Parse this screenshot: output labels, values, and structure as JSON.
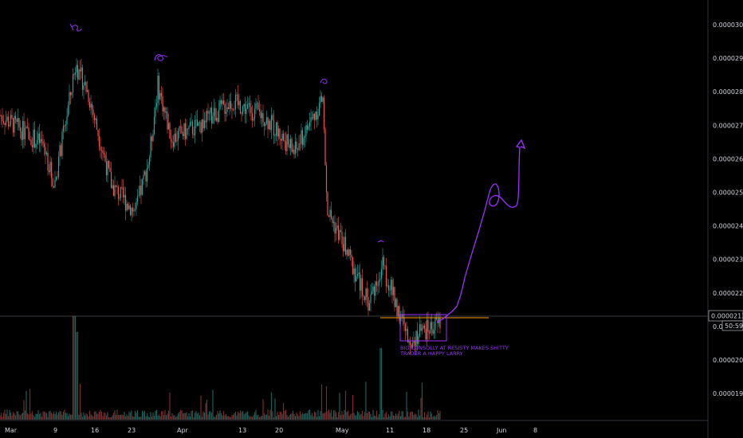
{
  "theme": {
    "background": "#000000",
    "up_color": "#26a69a",
    "down_color": "#ef5350",
    "annotation_color": "#9b30ff",
    "level_color": "#ff9800",
    "crosshair_color": "#787b86"
  },
  "chart_data": {
    "type": "candlestick",
    "title": "",
    "xlabel": "",
    "ylabel": "",
    "ylim": [
      1.84e-05,
      3.07e-05
    ],
    "price_ticks": [
      "0.00003000",
      "0.00002900",
      "0.00002800",
      "0.00002700",
      "0.00002600",
      "0.00002500",
      "0.00002400",
      "0.00002300",
      "0.00002200",
      "0.00002100",
      "0.00002000",
      "0.00001900"
    ],
    "time_ticks": [
      "Mar",
      "9",
      "16",
      "23",
      "Apr",
      "13",
      "20",
      "May",
      "11",
      "18",
      "25",
      "Jun",
      "8"
    ],
    "current_price": "0.00002138",
    "countdown": "50:59",
    "price_path": [
      {
        "t": "Mar",
        "p": 2.73e-05
      },
      {
        "t": "7",
        "p": 2.64e-05
      },
      {
        "t": "8",
        "p": 2.52e-05
      },
      {
        "t": "12",
        "p": 2.88e-05
      },
      {
        "t": "14",
        "p": 2.8e-05
      },
      {
        "t": "19",
        "p": 2.52e-05
      },
      {
        "t": "22",
        "p": 2.44e-05
      },
      {
        "t": "24",
        "p": 2.6e-05
      },
      {
        "t": "26",
        "p": 2.82e-05
      },
      {
        "t": "29",
        "p": 2.66e-05
      },
      {
        "t": "Apr 3",
        "p": 2.7e-05
      },
      {
        "t": "Apr 8",
        "p": 2.77e-05
      },
      {
        "t": "Apr 14",
        "p": 2.73e-05
      },
      {
        "t": "Apr 21",
        "p": 2.62e-05
      },
      {
        "t": "Apr 27",
        "p": 2.78e-05
      },
      {
        "t": "Apr 29",
        "p": 2.45e-05
      },
      {
        "t": "May 4",
        "p": 2.35e-05
      },
      {
        "t": "May 7",
        "p": 2.17e-05
      },
      {
        "t": "May 9",
        "p": 2.28e-05
      },
      {
        "t": "May 12",
        "p": 2.18e-05
      },
      {
        "t": "May 15",
        "p": 2.06e-05
      },
      {
        "t": "May 18",
        "p": 2.09e-05
      },
      {
        "t": "May 20",
        "p": 2.11e-05
      }
    ],
    "annotations": {
      "consolidation_text": [
        "BIG CONSOLLY AT RESISTY MAKES SHITTY",
        "TRADER A HAPPY LARRY"
      ]
    }
  }
}
